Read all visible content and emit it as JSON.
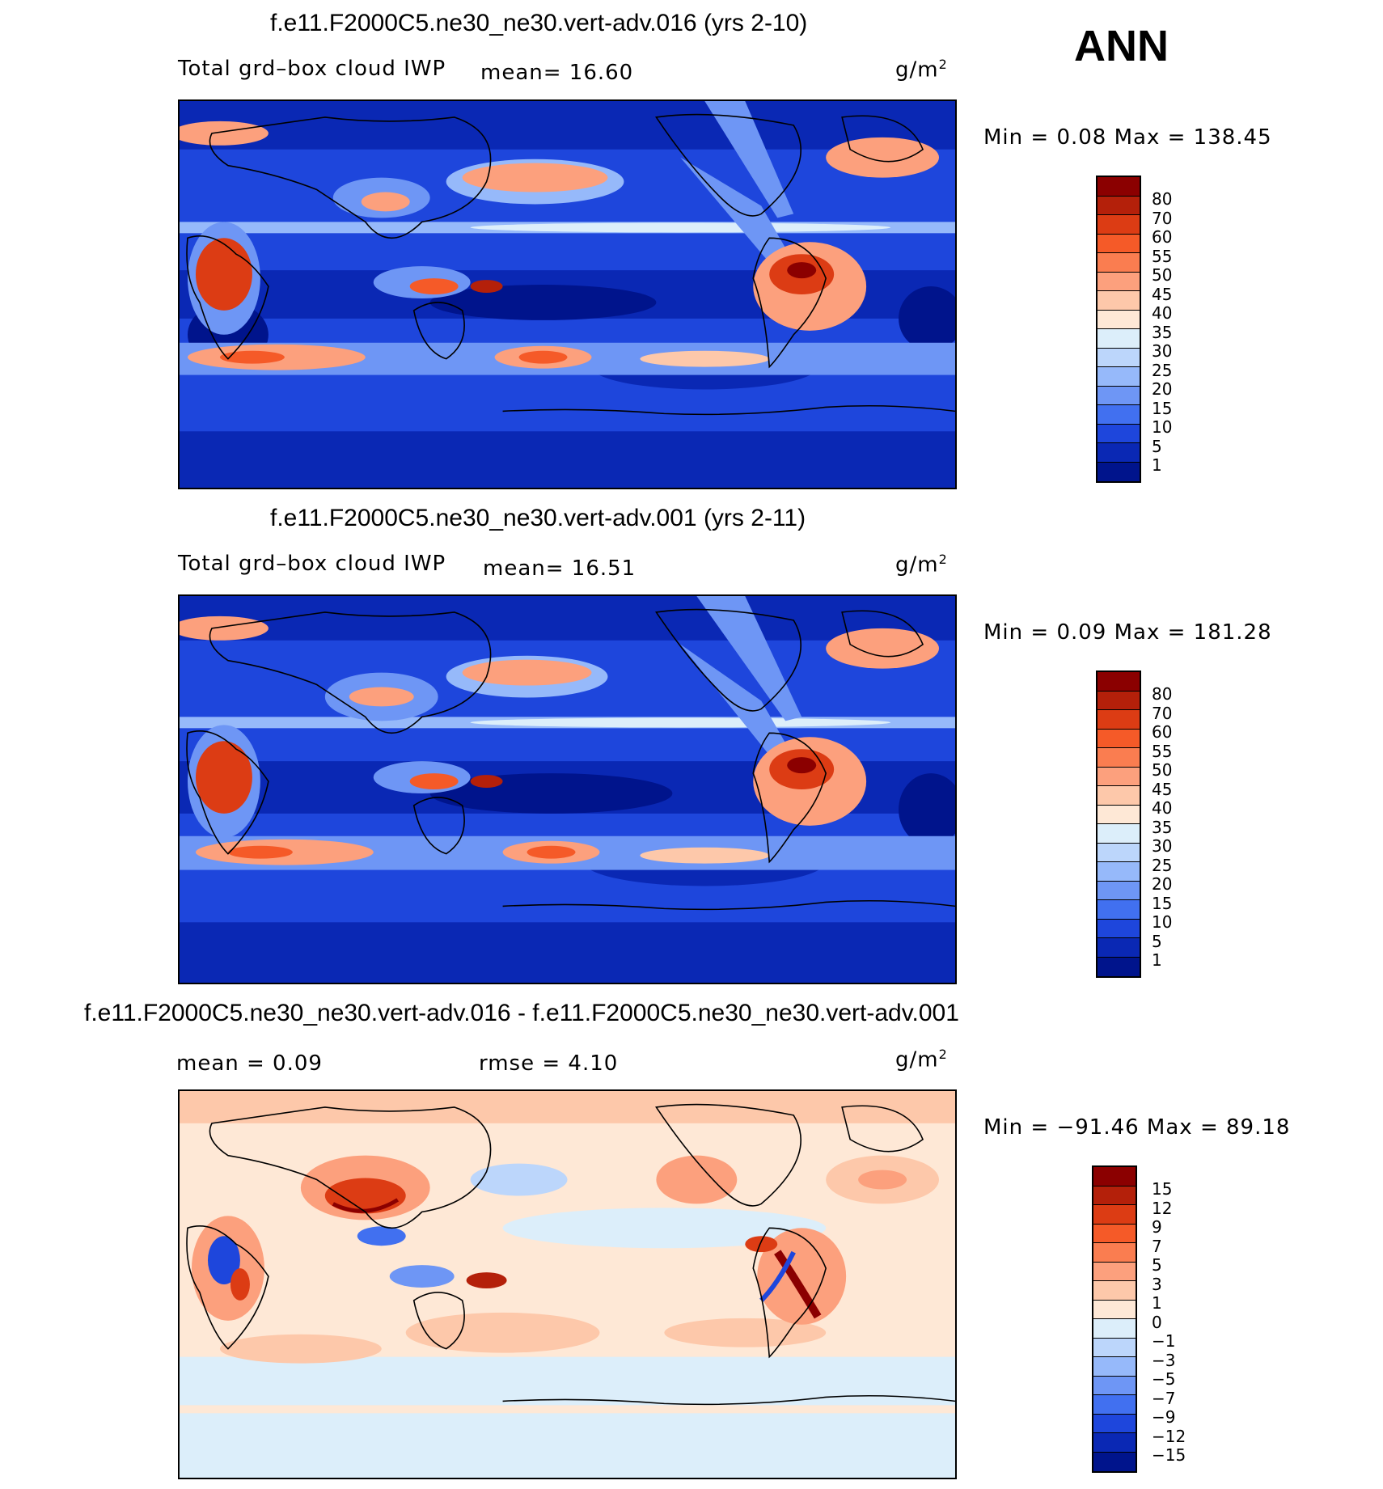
{
  "season": "ANN",
  "panels": [
    {
      "title": "f.e11.F2000C5.ne30_ne30.vert-adv.016 (yrs 2-10)",
      "variable": "Total grd–box cloud IWP",
      "mean_text": "mean=   16.60",
      "units": "g/m",
      "units_sup": "2",
      "minmax": "Min =    0.08  Max  =  138.45",
      "colorbar_labels": [
        "80",
        "70",
        "60",
        "55",
        "50",
        "45",
        "40",
        "35",
        "30",
        "25",
        "20",
        "15",
        "10",
        "5",
        "1"
      ],
      "colors": [
        "#8b0000",
        "#b4200a",
        "#dc3c14",
        "#f55a28",
        "#fa7d50",
        "#fca07d",
        "#fdc8aa",
        "#fee8d6",
        "#dceefa",
        "#bcd6fb",
        "#96b9fa",
        "#6e96f5",
        "#4170f0",
        "#1e46dc",
        "#0a28b4",
        "#00148c"
      ]
    },
    {
      "title": "f.e11.F2000C5.ne30_ne30.vert-adv.001 (yrs 2-11)",
      "variable": "Total grd–box cloud IWP",
      "mean_text": "mean=   16.51",
      "units": "g/m",
      "units_sup": "2",
      "minmax": "Min =    0.09  Max  =  181.28",
      "colorbar_labels": [
        "80",
        "70",
        "60",
        "55",
        "50",
        "45",
        "40",
        "35",
        "30",
        "25",
        "20",
        "15",
        "10",
        "5",
        "1"
      ],
      "colors": [
        "#8b0000",
        "#b4200a",
        "#dc3c14",
        "#f55a28",
        "#fa7d50",
        "#fca07d",
        "#fdc8aa",
        "#fee8d6",
        "#dceefa",
        "#bcd6fb",
        "#96b9fa",
        "#6e96f5",
        "#4170f0",
        "#1e46dc",
        "#0a28b4",
        "#00148c"
      ]
    },
    {
      "title": "f.e11.F2000C5.ne30_ne30.vert-adv.016 - f.e11.F2000C5.ne30_ne30.vert-adv.001",
      "mean_text": "mean  =    0.09",
      "rmse_text": "rmse  =    4.10",
      "units": "g/m",
      "units_sup": "2",
      "minmax": "Min  = −91.46  Max  =   89.18",
      "colorbar_labels": [
        "15",
        "12",
        "9",
        "7",
        "5",
        "3",
        "1",
        "0",
        "−1",
        "−3",
        "−5",
        "−7",
        "−9",
        "−12",
        "−15"
      ],
      "colors": [
        "#8b0000",
        "#b4200a",
        "#dc3c14",
        "#f55a28",
        "#fa7d50",
        "#fca07d",
        "#fdc8aa",
        "#fee8d6",
        "#dceefa",
        "#bcd6fb",
        "#96b9fa",
        "#6e96f5",
        "#4170f0",
        "#1e46dc",
        "#0a28b4",
        "#00148c"
      ]
    }
  ]
}
